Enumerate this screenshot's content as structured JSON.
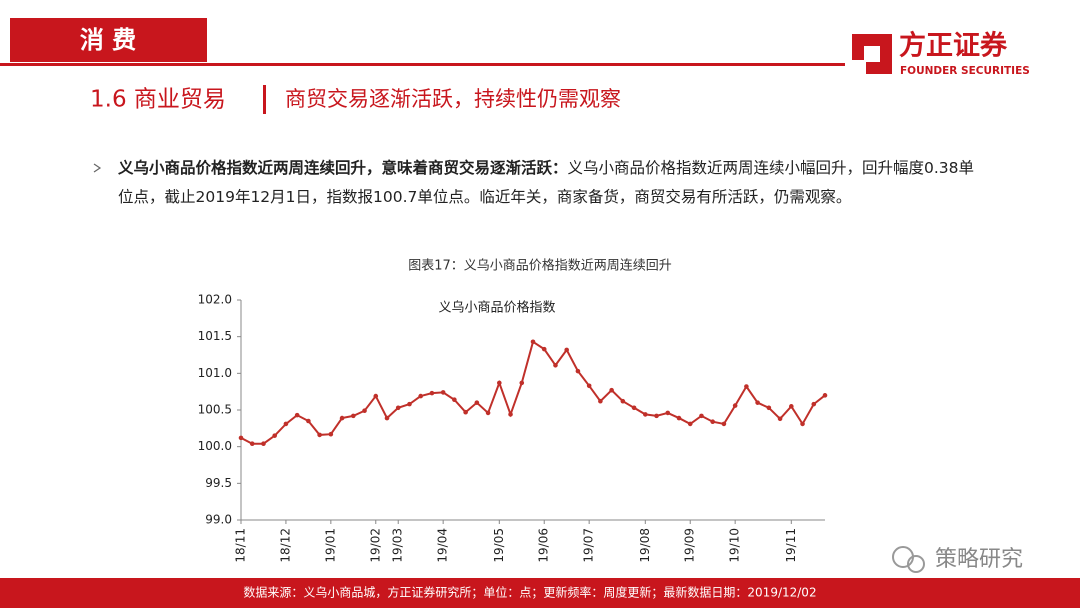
{
  "header": {
    "section": "消 费",
    "logo_cn": "方正证券",
    "logo_en": "FOUNDER SECURITIES"
  },
  "title": {
    "number": "1.6 商业贸易",
    "subtitle": "商贸交易逐渐活跃，持续性仍需观察"
  },
  "bullet": {
    "lead": "义乌小商品价格指数近两周连续回升，意味着商贸交易逐渐活跃：",
    "text": "义乌小商品价格指数近两周连续小幅回升，回升幅度0.38单位点，截止2019年12月1日，指数报100.7单位点。临近年关，商家备货，商贸交易有所活跃，仍需观察。"
  },
  "chart_data": {
    "type": "line",
    "caption": "图表17：义乌小商品价格指数近两周连续回升",
    "categories": [
      "18/11",
      null,
      null,
      null,
      "18/12",
      null,
      null,
      null,
      "19/01",
      null,
      null,
      null,
      "19/02",
      null,
      "19/03",
      null,
      null,
      null,
      "19/04",
      null,
      null,
      null,
      null,
      "19/05",
      null,
      null,
      null,
      "19/06",
      null,
      null,
      null,
      "19/07",
      null,
      null,
      null,
      null,
      "19/08",
      null,
      null,
      null,
      "19/09",
      null,
      null,
      null,
      "19/10",
      null,
      null,
      null,
      null,
      "19/11",
      null,
      null,
      null
    ],
    "series": [
      {
        "name": "义乌小商品价格指数",
        "color": "#c0302a",
        "values": [
          100.12,
          100.04,
          100.04,
          100.15,
          100.31,
          100.43,
          100.35,
          100.16,
          100.17,
          100.39,
          100.42,
          100.49,
          100.69,
          100.39,
          100.53,
          100.58,
          100.69,
          100.73,
          100.74,
          100.64,
          100.47,
          100.6,
          100.46,
          100.87,
          100.44,
          100.87,
          101.43,
          101.33,
          101.11,
          101.32,
          101.03,
          100.83,
          100.62,
          100.77,
          100.62,
          100.53,
          100.44,
          100.42,
          100.46,
          100.39,
          100.31,
          100.42,
          100.34,
          100.31,
          100.56,
          100.82,
          100.6,
          100.53,
          100.38,
          100.55,
          100.31,
          100.58,
          100.7
        ]
      }
    ],
    "ylim": [
      99,
      102
    ],
    "yticks": [
      {
        "value": 99,
        "label": "99.0"
      },
      99.5,
      {
        "value": 100,
        "label": "100.0"
      },
      100.5,
      {
        "value": 101,
        "label": "101.0"
      },
      101.5,
      {
        "value": 102,
        "label": "102.0"
      }
    ],
    "grid": false
  },
  "footer": {
    "source": "数据来源：义乌小商品城，方正证券研究所；单位：点；更新频率：周度更新；最新数据日期：2019/12/02"
  },
  "watermark": {
    "text": "策略研究"
  }
}
